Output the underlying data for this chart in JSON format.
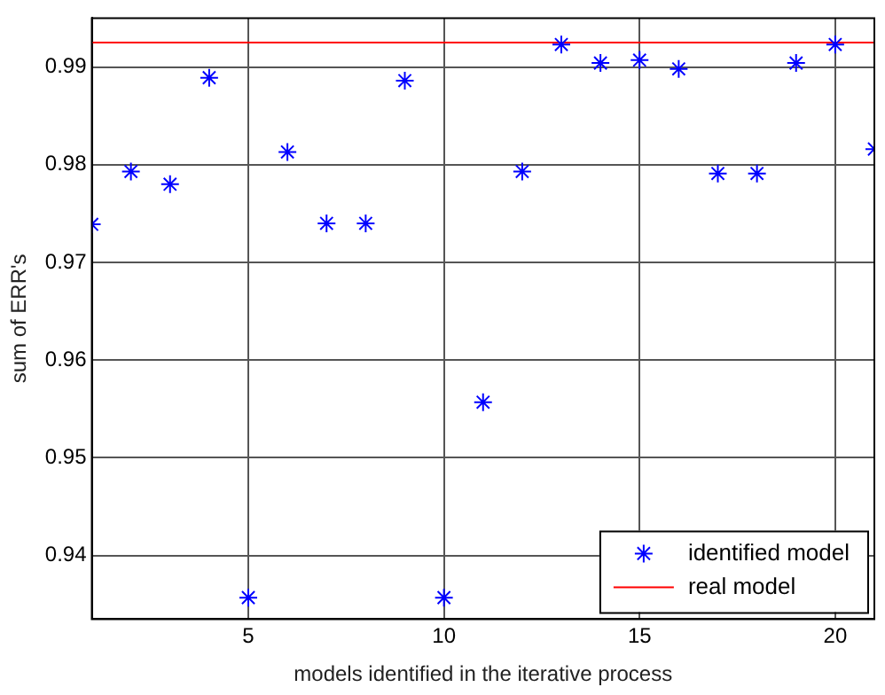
{
  "chart_data": {
    "type": "scatter",
    "xlabel": "models identified in the iterative process",
    "ylabel": "sum of ERR's",
    "x": [
      1,
      2,
      3,
      4,
      5,
      6,
      7,
      8,
      9,
      10,
      11,
      12,
      13,
      14,
      15,
      16,
      17,
      18,
      19,
      20,
      21
    ],
    "series": [
      {
        "name": "identified model",
        "color": "#0000ff",
        "marker": "cross",
        "values": [
          0.9739,
          0.9793,
          0.978,
          0.9889,
          0.9357,
          0.9813,
          0.974,
          0.974,
          0.9886,
          0.9357,
          0.9557,
          0.9793,
          0.9923,
          0.9904,
          0.9907,
          0.9898,
          0.9791,
          0.9791,
          0.9904,
          0.9923,
          0.9816
        ]
      },
      {
        "name": "real model",
        "type": "line",
        "color": "#ff0000",
        "marker": "none",
        "x": [
          1,
          21
        ],
        "values": [
          0.9925,
          0.9925
        ]
      }
    ],
    "xlim": [
      1,
      21
    ],
    "xticks": [
      5,
      10,
      15,
      20
    ],
    "ylim": [
      0.9335,
      0.995
    ],
    "yticks": [
      0.94,
      0.95,
      0.96,
      0.97,
      0.98,
      0.99
    ],
    "grid": true,
    "legend": "bottom right"
  }
}
